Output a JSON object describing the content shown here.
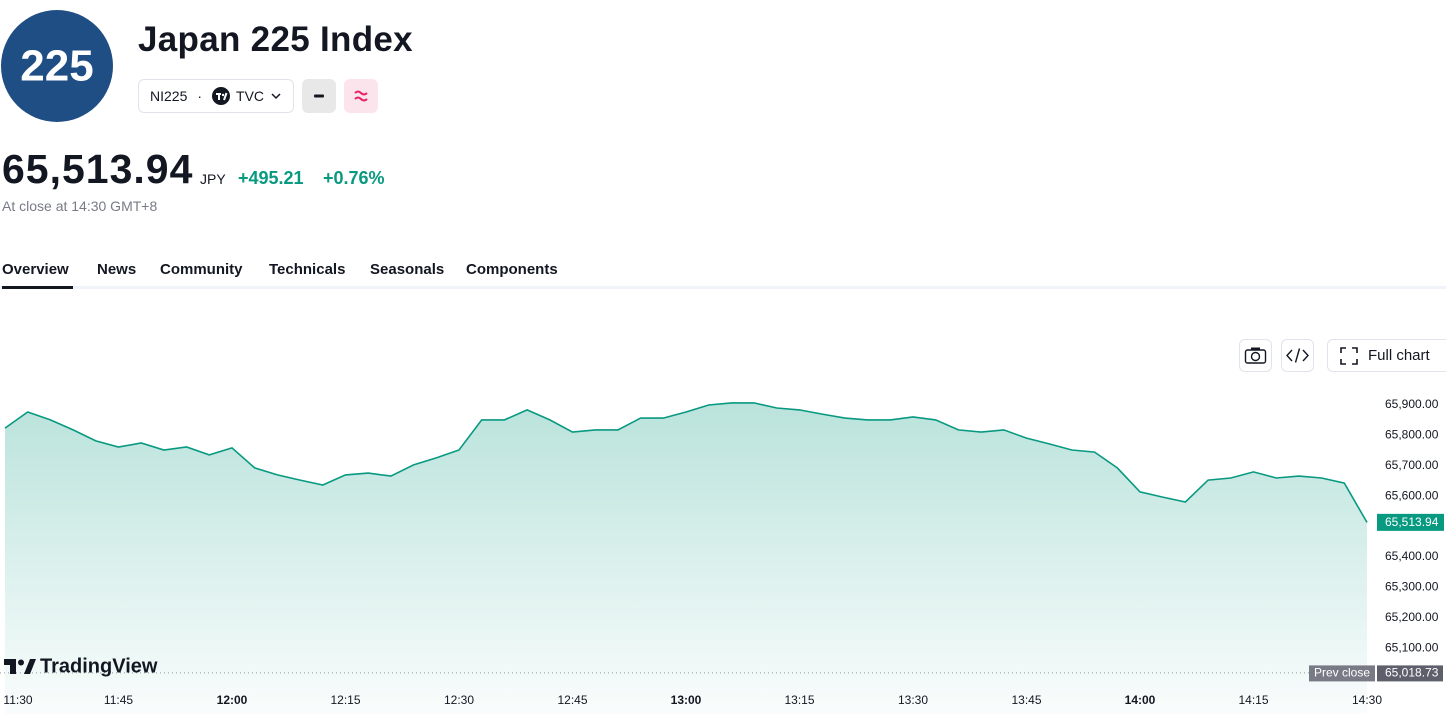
{
  "header": {
    "logo": "225",
    "title": "Japan 225 Index",
    "symbol": "NI225",
    "exchange": "TVC"
  },
  "quote": {
    "price": "65,513.94",
    "currency": "JPY",
    "change": "+495.21",
    "change_percent": "+0.76%",
    "status": "At close at 14:30 GMT+8"
  },
  "tabs": [
    "Overview",
    "News",
    "Community",
    "Technicals",
    "Seasonals",
    "Components"
  ],
  "toolbar": {
    "full_chart": "Full chart"
  },
  "brand": "TradingView",
  "chart_data": {
    "type": "line",
    "color": "#089981",
    "x": [
      "11:30",
      "11:33",
      "11:36",
      "11:39",
      "11:42",
      "11:45",
      "11:48",
      "11:51",
      "11:54",
      "11:57",
      "12:00",
      "12:03",
      "12:06",
      "12:09",
      "12:12",
      "12:15",
      "12:18",
      "12:21",
      "12:24",
      "12:27",
      "12:30",
      "12:33",
      "12:36",
      "12:39",
      "12:42",
      "12:45",
      "12:48",
      "12:51",
      "12:54",
      "12:57",
      "13:00",
      "13:03",
      "13:06",
      "13:09",
      "13:12",
      "13:15",
      "13:18",
      "13:21",
      "13:24",
      "13:27",
      "13:30",
      "13:33",
      "13:36",
      "13:39",
      "13:42",
      "13:45",
      "13:48",
      "13:51",
      "13:54",
      "13:57",
      "14:00",
      "14:03",
      "14:06",
      "14:09",
      "14:12",
      "14:15",
      "14:18",
      "14:21",
      "14:24",
      "14:27",
      "14:30"
    ],
    "values": [
      65824,
      65877,
      65851,
      65818,
      65782,
      65762,
      65775,
      65752,
      65762,
      65736,
      65759,
      65693,
      65670,
      65653,
      65637,
      65670,
      65676,
      65666,
      65703,
      65726,
      65752,
      65851,
      65851,
      65884,
      65851,
      65811,
      65818,
      65818,
      65857,
      65857,
      65877,
      65900,
      65907,
      65907,
      65890,
      65884,
      65870,
      65857,
      65851,
      65851,
      65861,
      65851,
      65818,
      65811,
      65818,
      65791,
      65772,
      65752,
      65745,
      65693,
      65614,
      65597,
      65581,
      65653,
      65660,
      65680,
      65660,
      65666,
      65660,
      65643,
      65513.94
    ],
    "ylim": [
      65000,
      66000
    ],
    "yticks": [
      {
        "value": 65100,
        "label": "65,100.00"
      },
      {
        "value": 65200,
        "label": "65,200.00"
      },
      {
        "value": 65300,
        "label": "65,300.00"
      },
      {
        "value": 65400,
        "label": "65,400.00"
      },
      {
        "value": 65600,
        "label": "65,600.00"
      },
      {
        "value": 65700,
        "label": "65,700.00"
      },
      {
        "value": 65800,
        "label": "65,800.00"
      },
      {
        "value": 65900,
        "label": "65,900.00"
      }
    ],
    "price_tag": {
      "value": 65513.94,
      "label": "65,513.94"
    },
    "prev_close": {
      "title": "Prev close",
      "value": 65018.73,
      "label": "65,018.73"
    }
  }
}
